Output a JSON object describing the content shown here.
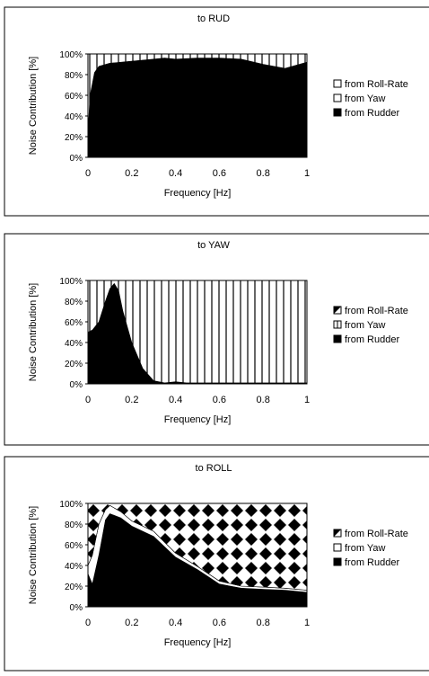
{
  "chart_data": [
    {
      "type": "area",
      "stacked": true,
      "title": "to RUD",
      "xlabel": "Frequency [Hz]",
      "ylabel": "Noise Contribution [%]",
      "xlim": [
        0,
        1
      ],
      "ylim": [
        0,
        100
      ],
      "x_ticks": [
        "0",
        "0.2",
        "0.4",
        "0.6",
        "0.8",
        "1"
      ],
      "y_ticks": [
        "0%",
        "20%",
        "40%",
        "60%",
        "80%",
        "100%"
      ],
      "legend_position": "right",
      "legend": [
        "from Roll-Rate",
        "from Yaw",
        "from Rudder"
      ],
      "x": [
        0,
        0.01,
        0.03,
        0.05,
        0.1,
        0.2,
        0.3,
        0.35,
        0.4,
        0.5,
        0.6,
        0.7,
        0.8,
        0.9,
        1.0
      ],
      "series": [
        {
          "name": "from Rudder",
          "values": [
            25,
            60,
            82,
            88,
            91,
            93,
            95,
            96,
            95,
            96,
            96,
            95,
            90,
            86,
            92
          ]
        },
        {
          "name": "from Yaw",
          "values": [
            75,
            40,
            18,
            12,
            9,
            7,
            5,
            4,
            5,
            4,
            4,
            5,
            10,
            14,
            8
          ]
        },
        {
          "name": "from Roll-Rate",
          "values": [
            0,
            0,
            0,
            0,
            0,
            0,
            0,
            0,
            0,
            0,
            0,
            0,
            0,
            0,
            0
          ]
        }
      ]
    },
    {
      "type": "area",
      "stacked": true,
      "title": "to YAW",
      "xlabel": "Frequency [Hz]",
      "ylabel": "Noise Contribution [%]",
      "xlim": [
        0,
        1
      ],
      "ylim": [
        0,
        100
      ],
      "x_ticks": [
        "0",
        "0.2",
        "0.4",
        "0.6",
        "0.8",
        "1"
      ],
      "y_ticks": [
        "0%",
        "20%",
        "40%",
        "60%",
        "80%",
        "100%"
      ],
      "legend_position": "right",
      "legend": [
        "from Roll-Rate",
        "from Yaw",
        "from Rudder"
      ],
      "x": [
        0,
        0.02,
        0.05,
        0.08,
        0.1,
        0.12,
        0.14,
        0.16,
        0.2,
        0.25,
        0.3,
        0.35,
        0.4,
        0.45,
        0.5,
        0.6,
        0.7,
        0.8,
        0.9,
        1.0
      ],
      "series": [
        {
          "name": "from Rudder",
          "values": [
            50,
            52,
            60,
            80,
            92,
            97,
            90,
            70,
            40,
            15,
            3,
            1,
            2,
            1,
            1,
            1,
            1,
            1,
            1,
            1
          ]
        },
        {
          "name": "from Yaw",
          "values": [
            50,
            48,
            40,
            20,
            8,
            3,
            10,
            30,
            60,
            85,
            97,
            99,
            98,
            99,
            99,
            99,
            99,
            99,
            99,
            99
          ]
        },
        {
          "name": "from Roll-Rate",
          "values": [
            0,
            0,
            0,
            0,
            0,
            0,
            0,
            0,
            0,
            0,
            0,
            0,
            0,
            0,
            0,
            0,
            0,
            0,
            0,
            0
          ]
        }
      ]
    },
    {
      "type": "area",
      "stacked": true,
      "title": "to ROLL",
      "xlabel": "Frequency [Hz]",
      "ylabel": "Noise Contribution [%]",
      "xlim": [
        0,
        1
      ],
      "ylim": [
        0,
        100
      ],
      "x_ticks": [
        "0",
        "0.2",
        "0.4",
        "0.6",
        "0.8",
        "1"
      ],
      "y_ticks": [
        "0%",
        "20%",
        "40%",
        "60%",
        "80%",
        "100%"
      ],
      "legend_position": "right",
      "legend": [
        "from Roll-Rate",
        "from Yaw",
        "from Rudder"
      ],
      "x": [
        0,
        0.02,
        0.05,
        0.08,
        0.1,
        0.15,
        0.2,
        0.3,
        0.4,
        0.5,
        0.6,
        0.7,
        0.8,
        0.9,
        1.0
      ],
      "series": [
        {
          "name": "from Rudder",
          "values": [
            32,
            22,
            50,
            84,
            90,
            86,
            78,
            68,
            48,
            36,
            22,
            18,
            17,
            16,
            14
          ]
        },
        {
          "name": "from Yaw",
          "values": [
            8,
            28,
            30,
            10,
            8,
            6,
            5,
            5,
            4,
            3,
            3,
            2,
            2,
            2,
            2
          ]
        },
        {
          "name": "from Roll-Rate",
          "values": [
            60,
            50,
            20,
            6,
            2,
            8,
            17,
            27,
            48,
            61,
            75,
            80,
            81,
            82,
            84
          ]
        }
      ]
    }
  ]
}
